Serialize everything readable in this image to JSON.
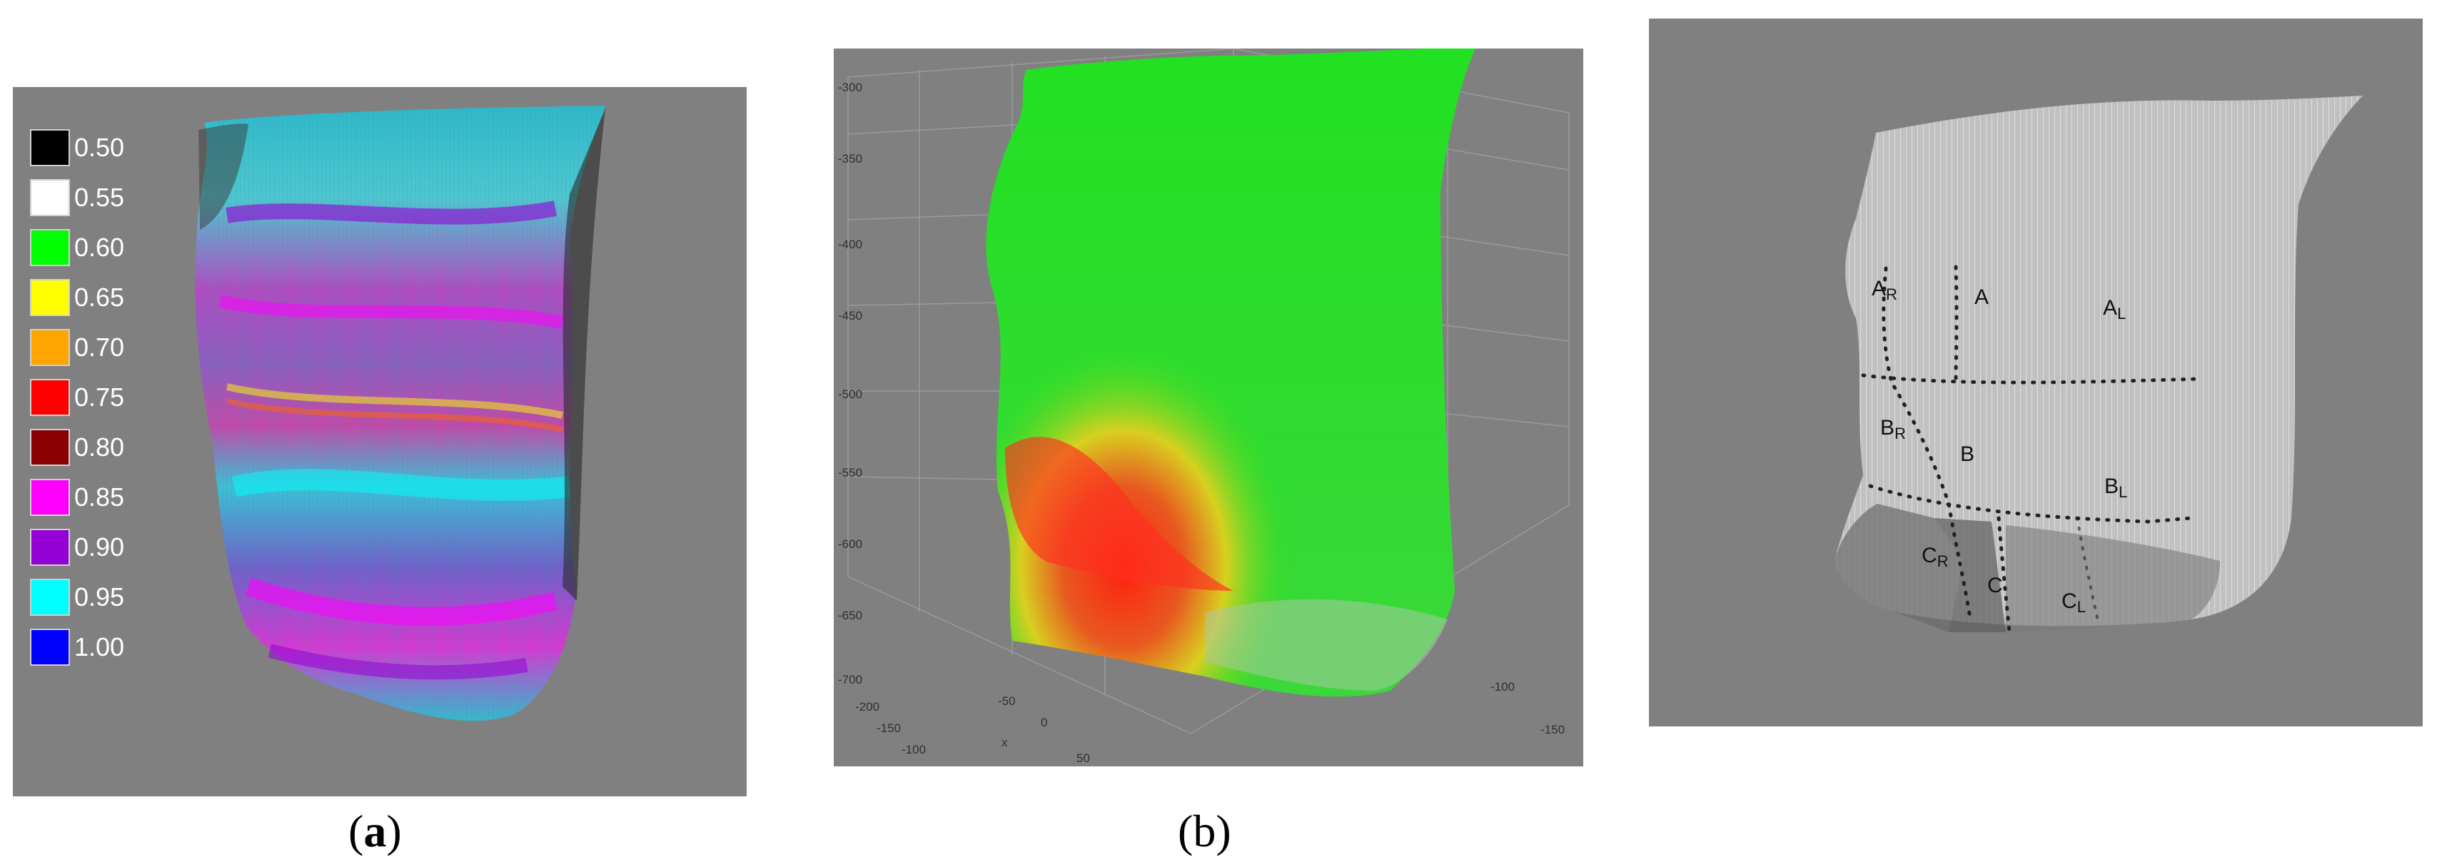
{
  "panel_a": {
    "legend": [
      {
        "label": "0.50",
        "color": "#000000"
      },
      {
        "label": "0.55",
        "color": "#ffffff"
      },
      {
        "label": "0.60",
        "color": "#00ff00"
      },
      {
        "label": "0.65",
        "color": "#ffff00"
      },
      {
        "label": "0.70",
        "color": "#ffa500"
      },
      {
        "label": "0.75",
        "color": "#ff0000"
      },
      {
        "label": "0.80",
        "color": "#8b0000"
      },
      {
        "label": "0.85",
        "color": "#ff00ff"
      },
      {
        "label": "0.90",
        "color": "#9400d3"
      },
      {
        "label": "0.95",
        "color": "#00ffff"
      },
      {
        "label": "1.00",
        "color": "#0000ff"
      }
    ],
    "caption_open": "(",
    "caption_letter": "a",
    "caption_close": ")"
  },
  "panel_b": {
    "y_ticks": [
      "-300",
      "-350",
      "-400",
      "-450",
      "-500",
      "-550",
      "-600",
      "-650",
      "-700"
    ],
    "x_ticks": [
      "-200",
      "-150",
      "-100",
      "-50",
      "0",
      "50"
    ],
    "x_axis_label": "x",
    "z_ticks": [
      "-100",
      "-150"
    ],
    "caption": "(b)"
  },
  "panel_c": {
    "regions": [
      {
        "main": "A",
        "sub": "R"
      },
      {
        "main": "A",
        "sub": ""
      },
      {
        "main": "A",
        "sub": "L"
      },
      {
        "main": "B",
        "sub": "R"
      },
      {
        "main": "B",
        "sub": ""
      },
      {
        "main": "B",
        "sub": "L"
      },
      {
        "main": "C",
        "sub": "R"
      },
      {
        "main": "C",
        "sub": ""
      },
      {
        "main": "C",
        "sub": "L"
      }
    ]
  }
}
